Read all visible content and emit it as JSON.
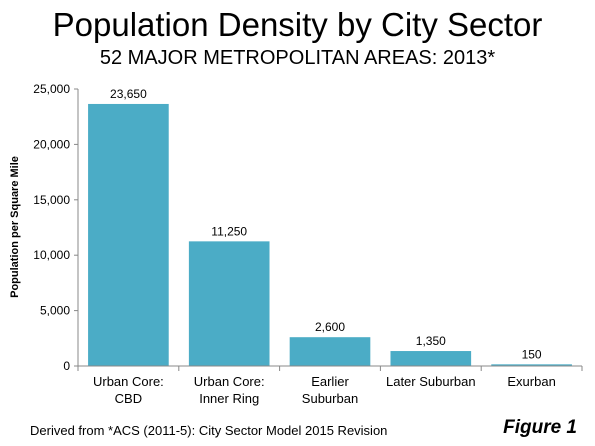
{
  "chart_data": {
    "type": "bar",
    "title": "Population Density by City Sector",
    "subtitle": "52 MAJOR METROPOLITAN AREAS: 2013*",
    "ylabel": "Population per Square Mile",
    "xlabel": "",
    "ylim": [
      0,
      25000
    ],
    "yticks": [
      "0",
      "5,000",
      "10,000",
      "15,000",
      "20,000",
      "25,000"
    ],
    "ytick_values": [
      0,
      5000,
      10000,
      15000,
      20000,
      25000
    ],
    "categories": [
      [
        "Urban Core:",
        "CBD"
      ],
      [
        "Urban Core:",
        "Inner Ring"
      ],
      [
        "Earlier",
        "Suburban"
      ],
      [
        "Later Suburban"
      ],
      [
        "Exurban"
      ]
    ],
    "values": [
      23650,
      11250,
      2600,
      1350,
      150
    ],
    "value_labels": [
      "23,650",
      "11,250",
      "2,600",
      "1,350",
      "150"
    ],
    "bar_color": "#4BACC6",
    "grid": false,
    "legend": "none"
  },
  "footer": {
    "source": "Derived from *ACS (2011-5): City Sector Model 2015 Revision",
    "figure_label": "Figure 1"
  }
}
